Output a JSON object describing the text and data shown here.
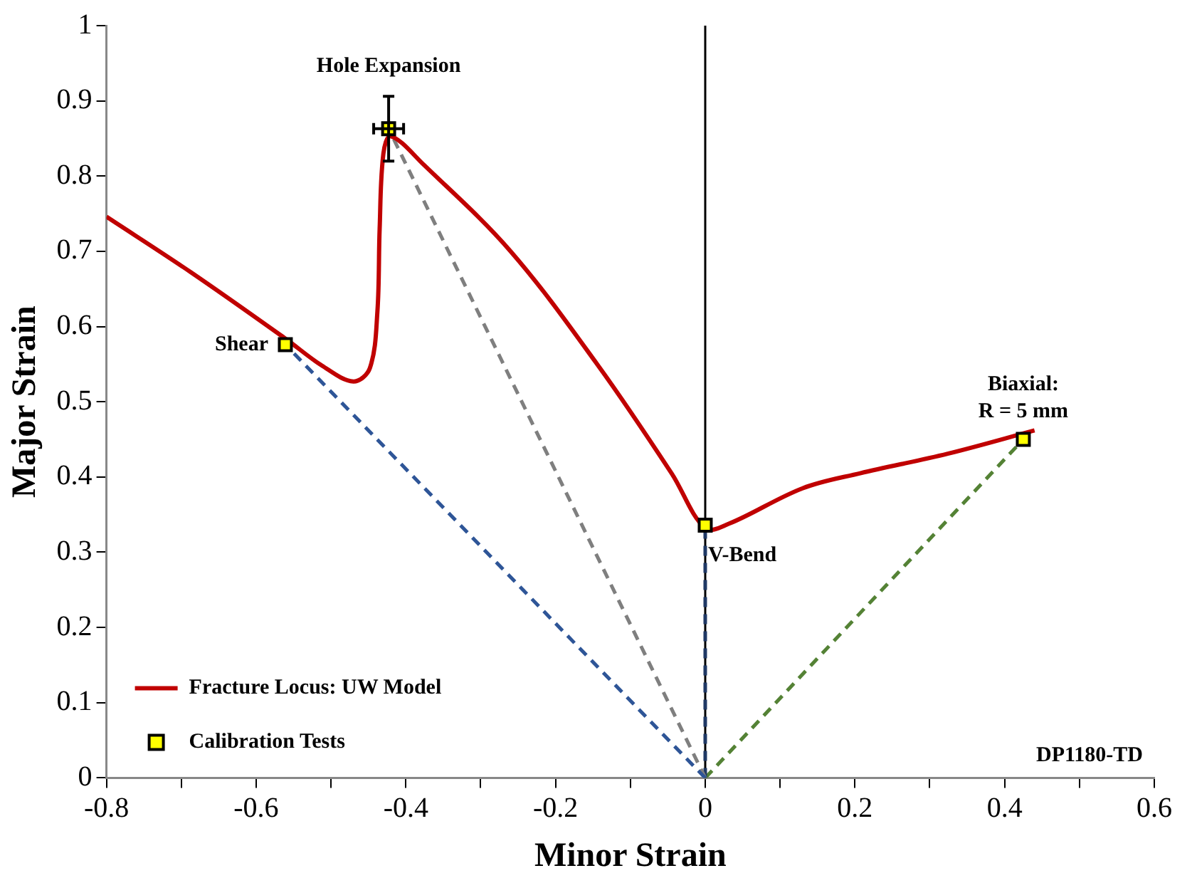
{
  "chart_data": {
    "type": "line",
    "xlabel": "Minor Strain",
    "ylabel": "Major Strain",
    "xlim": [
      -0.8,
      0.6
    ],
    "xticks": [
      -0.8,
      {
        "value": -0.7,
        "label": null
      },
      -0.6,
      {
        "value": -0.5,
        "label": null
      },
      -0.4,
      {
        "value": -0.3,
        "label": null
      },
      -0.2,
      {
        "value": -0.1,
        "label": null
      },
      0,
      {
        "value": 0.1,
        "label": null
      },
      0.2,
      {
        "value": 0.3,
        "label": null
      },
      0.4,
      {
        "value": 0.5,
        "label": null
      },
      0.6
    ],
    "ylim": [
      0,
      1
    ],
    "yticks": [
      0,
      0.1,
      0.2,
      0.3,
      0.4,
      0.5,
      0.6,
      0.7,
      0.8,
      0.9,
      1
    ],
    "grid": false,
    "legend": "bottom left",
    "ref_lines": [
      {
        "axis": "x",
        "value": 0,
        "color": "#000000"
      }
    ],
    "series": [
      {
        "color": "#2e5597",
        "line_style": "dashed",
        "marker": "none",
        "x": [
          0,
          -0.561
        ],
        "values": [
          0,
          0.576
        ]
      },
      {
        "color": "#7f7f7f",
        "line_style": "dashed",
        "marker": "none",
        "x": [
          0,
          -0.423
        ],
        "values": [
          0,
          0.863
        ]
      },
      {
        "color": "#1f3864",
        "line_style": "dashed",
        "marker": "none",
        "x": [
          0,
          0
        ],
        "values": [
          0,
          0.336
        ]
      },
      {
        "color": "#548235",
        "line_style": "dashed",
        "marker": "none",
        "x": [
          0,
          0.425
        ],
        "values": [
          0,
          0.45
        ]
      },
      {
        "name": "Fracture Locus: UW Model",
        "color": "#c00000",
        "line_style": "solid",
        "marker": "none",
        "x": [
          -0.8,
          -0.687,
          -0.561,
          -0.512,
          -0.47,
          -0.448,
          -0.438,
          -0.435,
          -0.43,
          -0.42,
          -0.376,
          -0.26,
          -0.143,
          -0.045,
          0,
          0.032,
          0.13,
          0.207,
          0.324,
          0.44
        ],
        "values": [
          0.746,
          0.672,
          0.584,
          0.548,
          0.527,
          0.545,
          0.62,
          0.73,
          0.83,
          0.853,
          0.815,
          0.7,
          0.548,
          0.405,
          0.332,
          0.338,
          0.385,
          0.405,
          0.431,
          0.462
        ]
      },
      {
        "type": "scatter",
        "name": "Calibration Tests",
        "color": "#ffff00",
        "marker": "square",
        "x": [
          -0.561,
          -0.423,
          0,
          0.425
        ],
        "values": [
          0.576,
          0.863,
          0.336,
          0.45
        ],
        "errors": [
          null,
          0.043,
          null,
          null
        ],
        "xerrors": [
          null,
          0.02,
          null,
          null
        ]
      }
    ],
    "annotations": [
      {
        "text": "Shear",
        "x": -0.561,
        "y": 0.576
      },
      {
        "text": "Hole Expansion",
        "x": -0.423,
        "y": 0.863
      },
      {
        "text": "V-Bend",
        "x": 0,
        "y": 0.336
      },
      {
        "text": "Biaxial:\nR = 5 mm",
        "x": 0.425,
        "y": 0.45
      },
      "DP1180-TD"
    ]
  }
}
